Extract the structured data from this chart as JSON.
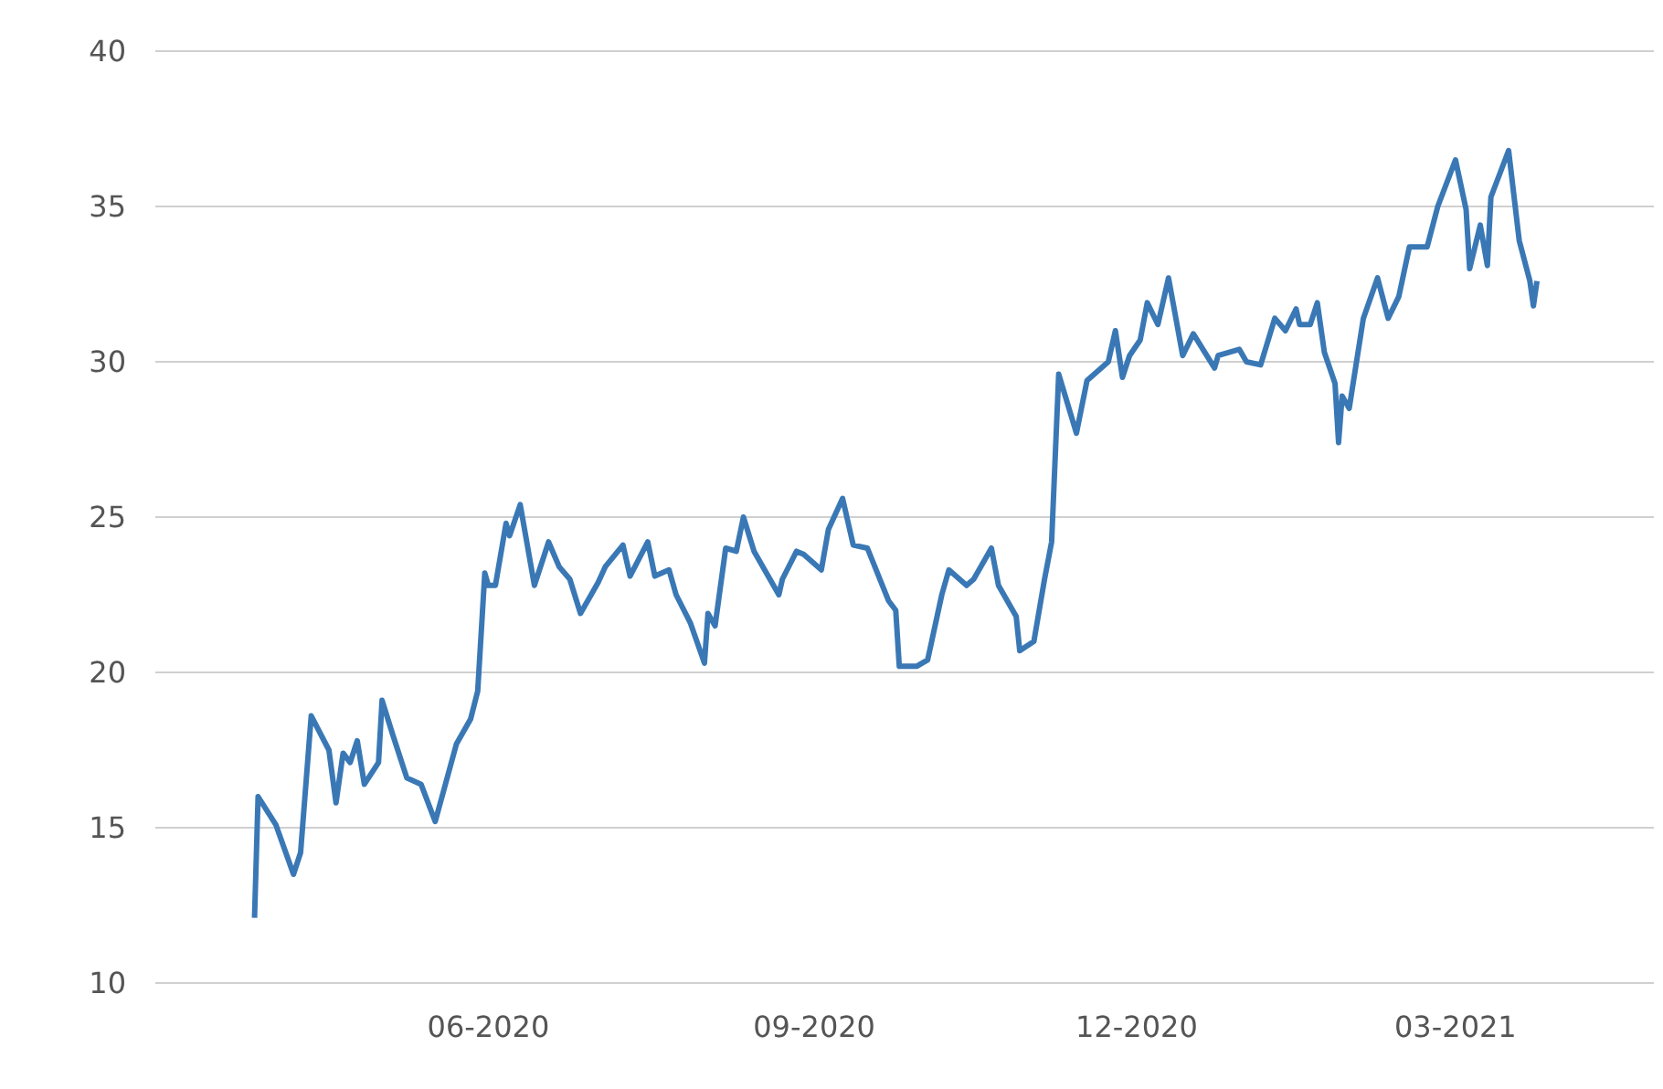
{
  "chart_data": {
    "type": "line",
    "x": [
      "2020-03-27",
      "2020-03-28",
      "2020-04-02",
      "2020-04-07",
      "2020-04-09",
      "2020-04-12",
      "2020-04-17",
      "2020-04-19",
      "2020-04-21",
      "2020-04-23",
      "2020-04-25",
      "2020-04-27",
      "2020-05-01",
      "2020-05-02",
      "2020-05-05",
      "2020-05-09",
      "2020-05-13",
      "2020-05-17",
      "2020-05-23",
      "2020-05-27",
      "2020-05-29",
      "2020-05-31",
      "2020-06-01",
      "2020-06-03",
      "2020-06-06",
      "2020-06-07",
      "2020-06-10",
      "2020-06-14",
      "2020-06-18",
      "2020-06-21",
      "2020-06-24",
      "2020-06-27",
      "2020-07-02",
      "2020-07-04",
      "2020-07-09",
      "2020-07-11",
      "2020-07-16",
      "2020-07-18",
      "2020-07-22",
      "2020-07-24",
      "2020-07-28",
      "2020-08-01",
      "2020-08-02",
      "2020-08-04",
      "2020-08-07",
      "2020-08-10",
      "2020-08-12",
      "2020-08-15",
      "2020-08-22",
      "2020-08-23",
      "2020-08-27",
      "2020-08-29",
      "2020-09-03",
      "2020-09-05",
      "2020-09-09",
      "2020-09-12",
      "2020-09-16",
      "2020-09-22",
      "2020-09-24",
      "2020-09-25",
      "2020-09-30",
      "2020-10-03",
      "2020-10-07",
      "2020-10-09",
      "2020-10-14",
      "2020-10-16",
      "2020-10-21",
      "2020-10-23",
      "2020-10-28",
      "2020-10-29",
      "2020-11-02",
      "2020-11-05",
      "2020-11-07",
      "2020-11-09",
      "2020-11-14",
      "2020-11-17",
      "2020-11-20",
      "2020-11-23",
      "2020-11-25",
      "2020-11-27",
      "2020-11-29",
      "2020-12-02",
      "2020-12-04",
      "2020-12-07",
      "2020-12-10",
      "2020-12-14",
      "2020-12-17",
      "2020-12-23",
      "2020-12-24",
      "2020-12-30",
      "2021-01-01",
      "2021-01-05",
      "2021-01-09",
      "2021-01-12",
      "2021-01-15",
      "2021-01-16",
      "2021-01-19",
      "2021-01-21",
      "2021-01-23",
      "2021-01-26",
      "2021-01-27",
      "2021-01-28",
      "2021-01-30",
      "2021-02-03",
      "2021-02-07",
      "2021-02-10",
      "2021-02-13",
      "2021-02-16",
      "2021-02-21",
      "2021-02-24",
      "2021-03-01",
      "2021-03-04",
      "2021-03-05",
      "2021-03-08",
      "2021-03-10",
      "2021-03-11",
      "2021-03-16",
      "2021-03-19",
      "2021-03-22",
      "2021-03-23",
      "2021-03-24"
    ],
    "series": [
      {
        "color": "#3a78b5",
        "values": [
          12.1,
          16.0,
          15.1,
          13.5,
          14.2,
          18.6,
          17.5,
          15.8,
          17.4,
          17.1,
          17.8,
          16.4,
          17.1,
          19.1,
          18.0,
          16.6,
          16.4,
          15.2,
          17.7,
          18.5,
          19.4,
          23.2,
          22.8,
          22.8,
          24.8,
          24.4,
          25.4,
          22.8,
          24.2,
          23.4,
          23.0,
          21.9,
          22.9,
          23.4,
          24.1,
          23.1,
          24.2,
          23.1,
          23.3,
          22.5,
          21.6,
          20.3,
          21.9,
          21.5,
          24.0,
          23.9,
          25.0,
          23.9,
          22.5,
          23.0,
          23.9,
          23.8,
          23.3,
          24.6,
          25.6,
          24.1,
          24.0,
          22.3,
          22.0,
          20.2,
          20.2,
          20.4,
          22.5,
          23.3,
          22.8,
          23.0,
          24.0,
          22.8,
          21.8,
          20.7,
          21.0,
          23.0,
          24.2,
          29.6,
          27.7,
          29.4,
          29.7,
          30.0,
          31.0,
          29.5,
          30.2,
          30.7,
          31.9,
          31.2,
          32.7,
          30.2,
          30.9,
          29.8,
          30.2,
          30.4,
          30.0,
          29.9,
          31.4,
          31.0,
          31.7,
          31.2,
          31.2,
          31.9,
          30.3,
          29.3,
          27.4,
          28.9,
          28.5,
          31.4,
          32.7,
          31.4,
          32.1,
          33.7,
          33.7,
          35.0,
          36.5,
          34.9,
          33.0,
          34.4,
          33.1,
          35.3,
          36.8,
          33.9,
          32.6,
          31.8,
          32.6
        ]
      }
    ],
    "xlim": [
      "2020-02-28",
      "2021-04-26"
    ],
    "xticks": [
      {
        "value": "2020-06-01",
        "label": "06-2020"
      },
      {
        "value": "2020-09-01",
        "label": "09-2020"
      },
      {
        "value": "2020-12-01",
        "label": "12-2020"
      },
      {
        "value": "2021-03-01",
        "label": "03-2021"
      }
    ],
    "ylim": [
      10,
      40
    ],
    "yticks": [
      10,
      15,
      20,
      25,
      30,
      35,
      40
    ],
    "grid": "y",
    "marker": "none",
    "line_style": "solid"
  }
}
